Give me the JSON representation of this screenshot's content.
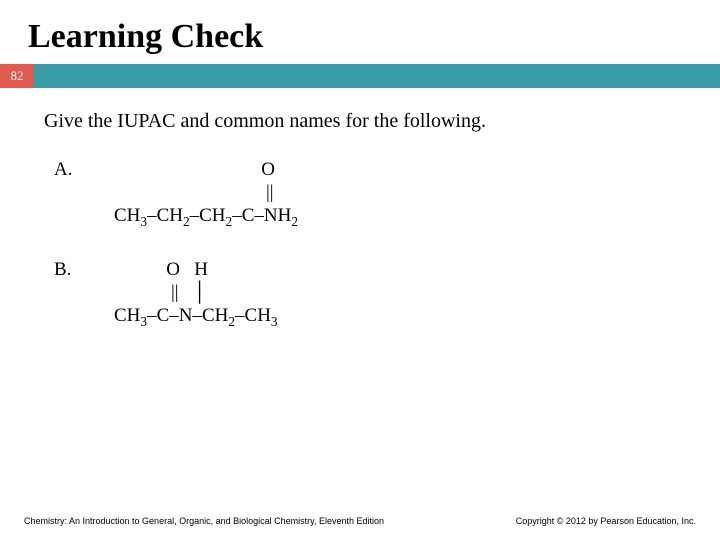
{
  "title": "Learning Check",
  "page_number": "82",
  "prompt": "Give the IUPAC and common names for the following.",
  "items": [
    {
      "label": "A.",
      "top": "                               O",
      "mid": "                                ||",
      "main_html": "CH<span class='sub'>3</span>–CH<span class='sub'>2</span>–CH<span class='sub'>2</span>–C–NH<span class='sub'>2</span>"
    },
    {
      "label": "B.",
      "top": "           O   H",
      "mid": "            ||   │",
      "main_html": "CH<span class='sub'>3</span>–C–N–CH<span class='sub'>2</span>–CH<span class='sub'>3</span>"
    }
  ],
  "footer_left": "Chemistry: An Introduction to General, Organic, and Biological Chemistry, Eleventh Edition",
  "footer_right": "Copyright © 2012 by Pearson Education, Inc.",
  "colors": {
    "page_num_bg": "#e15b4e",
    "banner_bg": "#3a9ca6"
  }
}
